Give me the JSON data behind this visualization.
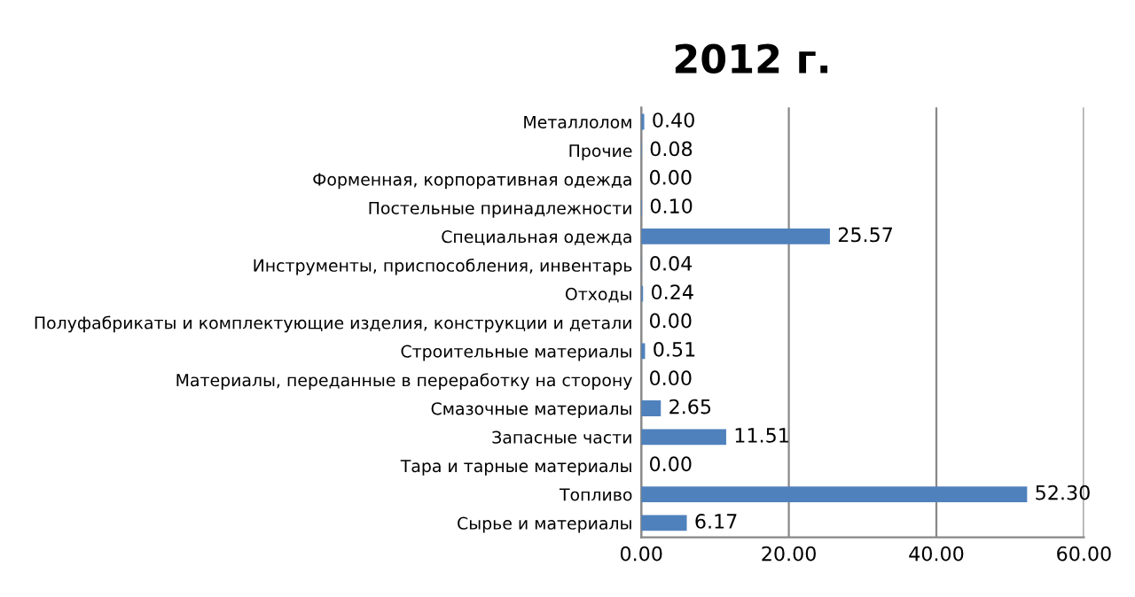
{
  "chart_data": {
    "type": "bar",
    "orientation": "horizontal",
    "title": "2012 г.",
    "categories": [
      "Металлолом",
      "Прочие",
      "Форменная, корпоративная одежда",
      "Постельные принадлежности",
      "Специальная одежда",
      "Инструменты, приспособления, инвентарь",
      "Отходы",
      "Полуфабрикаты и комплектующие изделия, конструкции и детали",
      "Строительные материалы",
      "Материалы, переданные в переработку на сторону",
      "Смазочные материалы",
      "Запасные части",
      "Тара и тарные материалы",
      "Топливо",
      "Сырье и материалы"
    ],
    "values": [
      0.4,
      0.08,
      0.0,
      0.1,
      25.57,
      0.04,
      0.24,
      0.0,
      0.51,
      0.0,
      2.65,
      11.51,
      0.0,
      52.3,
      6.17
    ],
    "value_labels": [
      "0.40",
      "0.08",
      "0.00",
      "0.10",
      "25.57",
      "0.04",
      "0.24",
      "0.00",
      "0.51",
      "0.00",
      "2.65",
      "11.51",
      "0.00",
      "52.30",
      "6.17"
    ],
    "color": "#4f81bd",
    "xlim": [
      0,
      60
    ],
    "xticks": [
      {
        "value": 0,
        "label": "0.00"
      },
      {
        "value": 20,
        "label": "20.00"
      },
      {
        "value": 40,
        "label": "40.00"
      },
      {
        "value": 60,
        "label": "60.00"
      }
    ],
    "grid": "x",
    "legend": false
  }
}
